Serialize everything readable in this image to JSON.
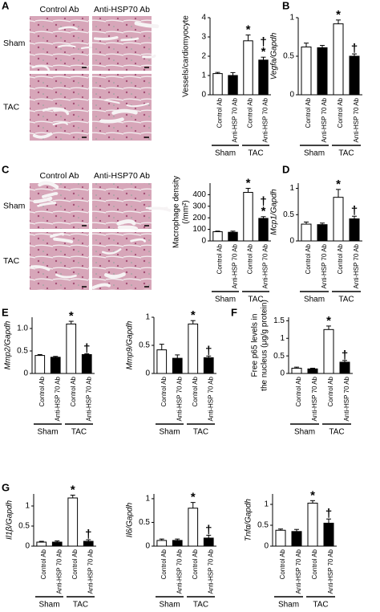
{
  "panels": [
    "A",
    "B",
    "C",
    "D",
    "E",
    "F",
    "G"
  ],
  "histology": [
    {
      "columns": [
        "Control Ab",
        "Anti-HSP70 Ab"
      ],
      "rows": [
        "Sham",
        "TAC"
      ]
    },
    {
      "columns": [
        "Control Ab",
        "Anti-HSP70 Ab"
      ],
      "rows": [
        "Sham",
        "TAC"
      ]
    }
  ],
  "chart_data": [
    {
      "type": "bar",
      "ylabel": [
        "Vessels/cardiomyocyte"
      ],
      "italic": false,
      "categories": [
        "Control Ab",
        "Anti-HSP 70 Ab",
        "Control Ab",
        "Anti-HSP 70 Ab"
      ],
      "groups": [
        "Sham",
        "TAC"
      ],
      "values": [
        1.1,
        1.0,
        2.8,
        1.8
      ],
      "errors": [
        0.06,
        0.15,
        0.3,
        0.15
      ],
      "colors": [
        "#ffffff",
        "#000000",
        "#ffffff",
        "#000000"
      ],
      "markers": [
        null,
        null,
        [
          "*"
        ],
        [
          "†",
          "*"
        ]
      ],
      "ylim": [
        0,
        4
      ],
      "yticks": [
        0,
        1,
        2,
        3,
        4
      ]
    },
    {
      "type": "bar",
      "ylabel": [
        "Vegfa/Gapdh"
      ],
      "italic": true,
      "categories": [
        "Control Ab",
        "Anti-HSP 70 Ab",
        "Control Ab",
        "Anti-HSP 70 Ab"
      ],
      "groups": [
        "Sham",
        "TAC"
      ],
      "values": [
        0.62,
        0.61,
        0.92,
        0.5
      ],
      "errors": [
        0.05,
        0.03,
        0.05,
        0.03
      ],
      "colors": [
        "#ffffff",
        "#000000",
        "#ffffff",
        "#000000"
      ],
      "markers": [
        null,
        null,
        [
          "*"
        ],
        [
          "†"
        ]
      ],
      "ylim": [
        0,
        1
      ],
      "yticks": [
        0,
        0.5,
        1
      ]
    },
    {
      "type": "bar",
      "ylabel": [
        "Macrophage density",
        "(/mm²)"
      ],
      "italic": false,
      "categories": [
        "Control Ab",
        "Anti-HSP 70 Ab",
        "Control Ab",
        "Anti-HSP 70 Ab"
      ],
      "groups": [
        "Sham",
        "TAC"
      ],
      "values": [
        80,
        75,
        420,
        195
      ],
      "errors": [
        5,
        10,
        35,
        15
      ],
      "colors": [
        "#ffffff",
        "#000000",
        "#ffffff",
        "#000000"
      ],
      "markers": [
        null,
        null,
        [
          "*"
        ],
        [
          "†",
          "*"
        ]
      ],
      "ylim": [
        0,
        500
      ],
      "yticks": [
        0,
        100,
        200,
        300,
        400
      ]
    },
    {
      "type": "bar",
      "ylabel": [
        "Mcp1/Gapdh"
      ],
      "italic": true,
      "categories": [
        "Control Ab",
        "Anti-HSP 70 Ab",
        "Control Ab",
        "Anti-HSP 70 Ab"
      ],
      "groups": [
        "Sham",
        "TAC"
      ],
      "values": [
        0.32,
        0.31,
        0.83,
        0.42
      ],
      "errors": [
        0.04,
        0.03,
        0.15,
        0.05
      ],
      "colors": [
        "#ffffff",
        "#000000",
        "#ffffff",
        "#000000"
      ],
      "markers": [
        null,
        null,
        [
          "*"
        ],
        [
          "†"
        ]
      ],
      "ylim": [
        0,
        1.1
      ],
      "yticks": [
        0,
        0.5,
        1
      ]
    },
    {
      "type": "bar",
      "ylabel": [
        "Mmp2/Gapdh"
      ],
      "italic": true,
      "categories": [
        "Control Ab",
        "Anti-HSP 70 Ab",
        "Control Ab",
        "Anti-HSP 70 Ab"
      ],
      "groups": [
        "Sham",
        "TAC"
      ],
      "values": [
        0.4,
        0.36,
        1.1,
        0.42
      ],
      "errors": [
        0.02,
        0.02,
        0.06,
        0.02
      ],
      "colors": [
        "#ffffff",
        "#000000",
        "#ffffff",
        "#000000"
      ],
      "markers": [
        null,
        null,
        [
          "*"
        ],
        [
          "†"
        ]
      ],
      "ylim": [
        0,
        1.25
      ],
      "yticks": [
        0,
        0.5,
        {
          "value": 1,
          "label": "1.0"
        }
      ]
    },
    {
      "type": "bar",
      "ylabel": [
        "Mmp9/Gapdh"
      ],
      "italic": true,
      "categories": [
        "Control Ab",
        "Anti-HSP 70 Ab",
        "Control Ab",
        "Anti-HSP 70 Ab"
      ],
      "groups": [
        "Sham",
        "TAC"
      ],
      "values": [
        0.42,
        0.27,
        0.88,
        0.28
      ],
      "errors": [
        0.1,
        0.06,
        0.06,
        0.03
      ],
      "colors": [
        "#ffffff",
        "#000000",
        "#ffffff",
        "#000000"
      ],
      "markers": [
        null,
        null,
        [
          "*"
        ],
        [
          "†"
        ]
      ],
      "ylim": [
        0,
        1
      ],
      "yticks": [
        0,
        0.5,
        1
      ]
    },
    {
      "type": "bar",
      "ylabel": [
        "Free p65 levels in",
        "the nucleus (μg/g protein)"
      ],
      "italic": false,
      "categories": [
        "Control Ab",
        "Anti-HSP 70 Ab",
        "Control Ab",
        "Anti-HSP 70 Ab"
      ],
      "groups": [
        "Sham",
        "TAC"
      ],
      "values": [
        0.15,
        0.13,
        1.25,
        0.32
      ],
      "errors": [
        0.03,
        0.02,
        0.1,
        0.05
      ],
      "colors": [
        "#ffffff",
        "#000000",
        "#ffffff",
        "#000000"
      ],
      "markers": [
        null,
        null,
        [
          "*"
        ],
        [
          "†"
        ]
      ],
      "ylim": [
        0,
        1.6
      ],
      "yticks": [
        0,
        0.5,
        1,
        1.5
      ]
    },
    {
      "type": "bar",
      "ylabel": [
        "Il1β/Gapdh"
      ],
      "italic": true,
      "categories": [
        "Control Ab",
        "Anti-HSP 70 Ab",
        "Control Ab",
        "Anti-HSP 70 Ab"
      ],
      "groups": [
        "Sham",
        "TAC"
      ],
      "values": [
        0.1,
        0.1,
        1.2,
        0.12
      ],
      "errors": [
        0.02,
        0.03,
        0.07,
        0.04
      ],
      "colors": [
        "#ffffff",
        "#000000",
        "#ffffff",
        "#000000"
      ],
      "markers": [
        null,
        null,
        [
          "*"
        ],
        [
          "†"
        ]
      ],
      "ylim": [
        0,
        1.3
      ],
      "yticks": [
        0,
        0.5,
        1
      ]
    },
    {
      "type": "bar",
      "ylabel": [
        "Il6/Gapdh"
      ],
      "italic": true,
      "categories": [
        "Control Ab",
        "Anti-HSP 70 Ab",
        "Control Ab",
        "Anti-HSP 70 Ab"
      ],
      "groups": [
        "Sham",
        "TAC"
      ],
      "values": [
        0.12,
        0.12,
        0.8,
        0.17
      ],
      "errors": [
        0.03,
        0.03,
        0.12,
        0.06
      ],
      "colors": [
        "#ffffff",
        "#000000",
        "#ffffff",
        "#000000"
      ],
      "markers": [
        null,
        null,
        [
          "*"
        ],
        [
          "†"
        ]
      ],
      "ylim": [
        0,
        1.1
      ],
      "yticks": [
        0,
        0.5,
        1
      ]
    },
    {
      "type": "bar",
      "ylabel": [
        "Tnfα/Gapdh"
      ],
      "italic": true,
      "categories": [
        "Control Ab",
        "Anti-HSP 70 Ab",
        "Control Ab",
        "Anti-HSP 70 Ab"
      ],
      "groups": [
        "Sham",
        "TAC"
      ],
      "values": [
        0.38,
        0.35,
        1.03,
        0.55
      ],
      "errors": [
        0.03,
        0.05,
        0.06,
        0.1
      ],
      "colors": [
        "#ffffff",
        "#000000",
        "#ffffff",
        "#000000"
      ],
      "markers": [
        null,
        null,
        [
          "*"
        ],
        [
          "†"
        ]
      ],
      "ylim": [
        0,
        1.25
      ],
      "yticks": [
        0,
        0.5,
        1
      ]
    }
  ]
}
